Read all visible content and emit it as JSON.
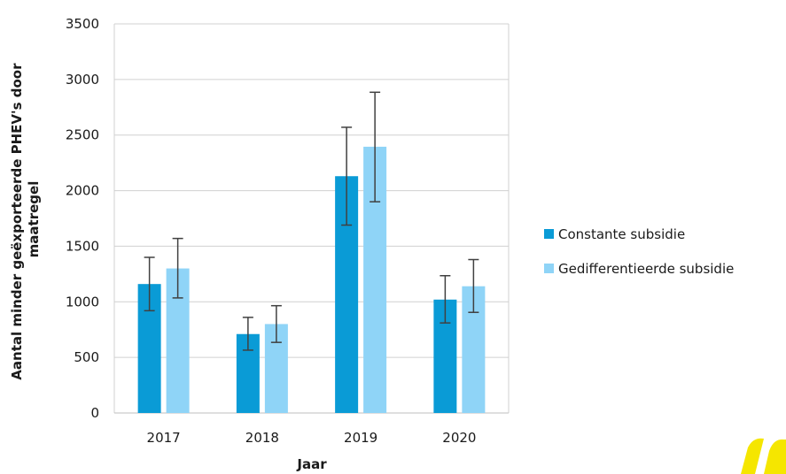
{
  "chart_data": {
    "type": "bar",
    "categories": [
      "2017",
      "2018",
      "2019",
      "2020"
    ],
    "series": [
      {
        "name": "Constante subsidie",
        "color": "#0a9bd6",
        "values": [
          1160,
          710,
          2130,
          1020
        ],
        "error_low": [
          920,
          565,
          1690,
          810
        ],
        "error_high": [
          1400,
          860,
          2570,
          1235
        ]
      },
      {
        "name": "Gedifferentieerde subsidie",
        "color": "#8fd4f7",
        "values": [
          1300,
          800,
          2395,
          1140
        ],
        "error_low": [
          1035,
          635,
          1900,
          905
        ],
        "error_high": [
          1570,
          965,
          2885,
          1380
        ]
      }
    ],
    "xlabel": "Jaar",
    "ylabel_lines": [
      "Aantal minder geëxporteerde PHEV's door",
      "maatregel"
    ],
    "ylim": [
      0,
      3500
    ],
    "yticks": [
      0,
      500,
      1000,
      1500,
      2000,
      2500,
      3000,
      3500
    ],
    "grid": true,
    "legend_position": "right"
  },
  "logo": {
    "name": "logo-mark",
    "color": "#f5e600"
  }
}
